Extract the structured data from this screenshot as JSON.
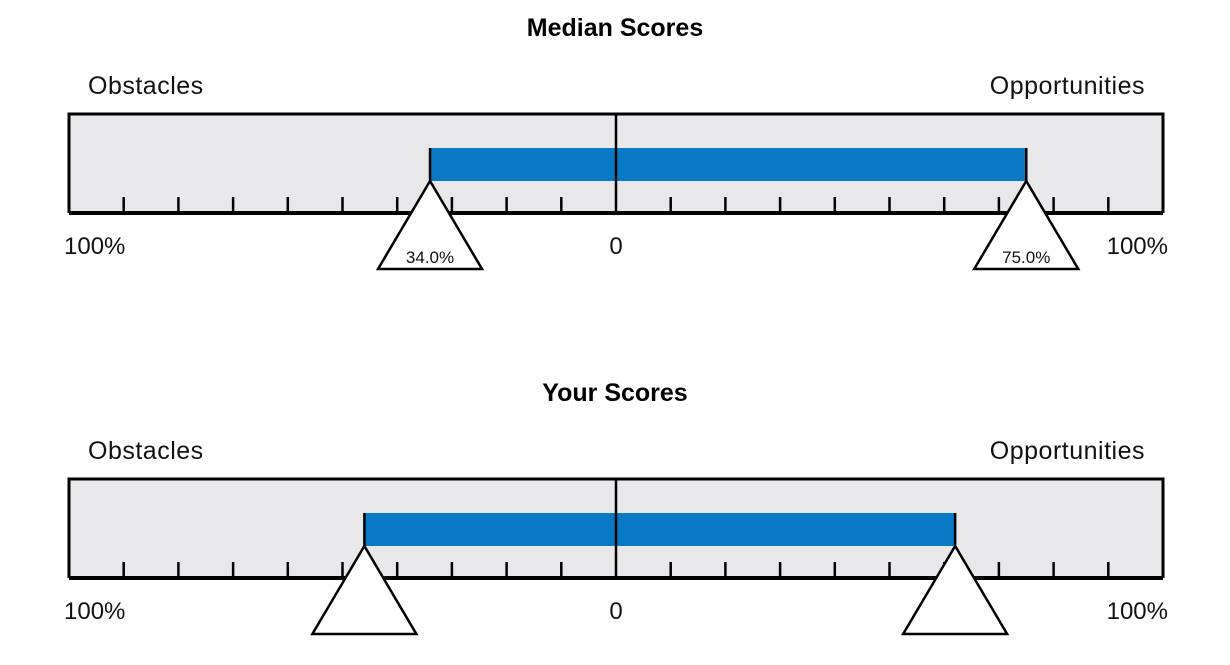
{
  "colors": {
    "track": "#e8e8ea",
    "bar": "#0a7ac6",
    "stroke": "#000000",
    "marker_fill": "#ffffff"
  },
  "chart_data": [
    {
      "type": "bar",
      "title": "Median Scores",
      "left_label": "Obstacles",
      "right_label": "Opportunities",
      "axis": {
        "left_end": "100%",
        "center": "0",
        "right_end": "100%",
        "xlim": [
          -100,
          100
        ],
        "minor_tick_step": 10
      },
      "obstacles": {
        "value": 34.0,
        "label": "34.0%"
      },
      "opportunities": {
        "value": 75.0,
        "label": "75.0%"
      }
    },
    {
      "type": "bar",
      "title": "Your Scores",
      "left_label": "Obstacles",
      "right_label": "Opportunities",
      "axis": {
        "left_end": "100%",
        "center": "0",
        "right_end": "100%",
        "xlim": [
          -100,
          100
        ],
        "minor_tick_step": 10
      },
      "obstacles": {
        "value": 46.0,
        "label": ""
      },
      "opportunities": {
        "value": 62.0,
        "label": ""
      }
    }
  ]
}
